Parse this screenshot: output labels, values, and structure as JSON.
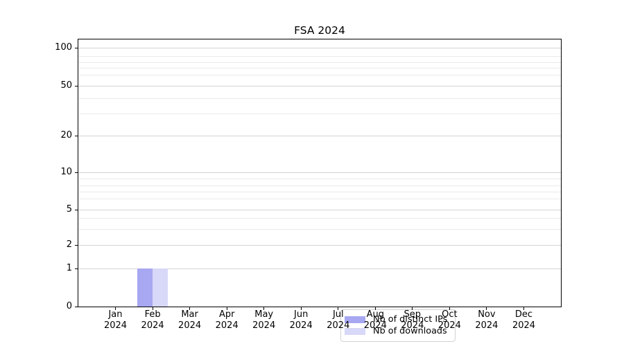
{
  "chart_data": {
    "type": "bar",
    "title": "FSA 2024",
    "x_year": "2024",
    "categories": [
      "Jan",
      "Feb",
      "Mar",
      "Apr",
      "May",
      "Jun",
      "Jul",
      "Aug",
      "Sep",
      "Oct",
      "Nov",
      "Dec"
    ],
    "series": [
      {
        "name": "Nb of distinct IPs",
        "color": "#a7a7f2",
        "values": [
          0,
          1,
          0,
          0,
          0,
          0,
          0,
          0,
          0,
          0,
          0,
          0
        ]
      },
      {
        "name": "Nb of downloads",
        "color": "#d8d8f8",
        "values": [
          0,
          1,
          0,
          0,
          0,
          0,
          0,
          0,
          0,
          0,
          0,
          0
        ]
      }
    ],
    "y_axis": {
      "scale": "symlog",
      "ticks": [
        0,
        1,
        2,
        5,
        10,
        20,
        50,
        100
      ],
      "minor_gridlines": [
        3,
        4,
        6,
        7,
        8,
        9,
        30,
        40,
        60,
        70,
        80,
        90
      ],
      "range": [
        0,
        120
      ]
    },
    "xlabel": "",
    "ylabel": "",
    "grid": true,
    "legend_position": "lower center",
    "colors": {
      "major_grid": "#d3d3d3",
      "minor_grid": "#eaeaea",
      "axis": "#000000",
      "background": "#ffffff"
    }
  }
}
